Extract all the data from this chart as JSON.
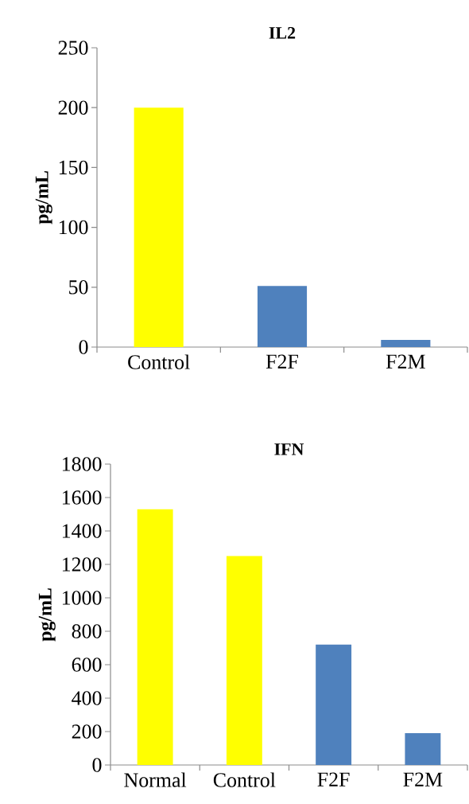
{
  "chart_data": [
    {
      "type": "bar",
      "title": "IL2",
      "ylabel": "pg/mL",
      "categories": [
        "Control",
        "F2F",
        "F2M"
      ],
      "values": [
        200,
        51,
        6
      ],
      "colors": [
        "#ffff00",
        "#4f81bd",
        "#4f81bd"
      ],
      "ylim": [
        0,
        250
      ],
      "yticks": [
        0,
        50,
        100,
        150,
        200,
        250
      ]
    },
    {
      "type": "bar",
      "title": "IFN",
      "ylabel": "pg/mL",
      "categories": [
        "Normal",
        "Control",
        "F2F",
        "F2M"
      ],
      "values": [
        1530,
        1250,
        720,
        190
      ],
      "colors": [
        "#ffff00",
        "#ffff00",
        "#4f81bd",
        "#4f81bd"
      ],
      "ylim": [
        0,
        1800
      ],
      "yticks": [
        0,
        200,
        400,
        600,
        800,
        1000,
        1200,
        1400,
        1600,
        1800
      ]
    }
  ]
}
